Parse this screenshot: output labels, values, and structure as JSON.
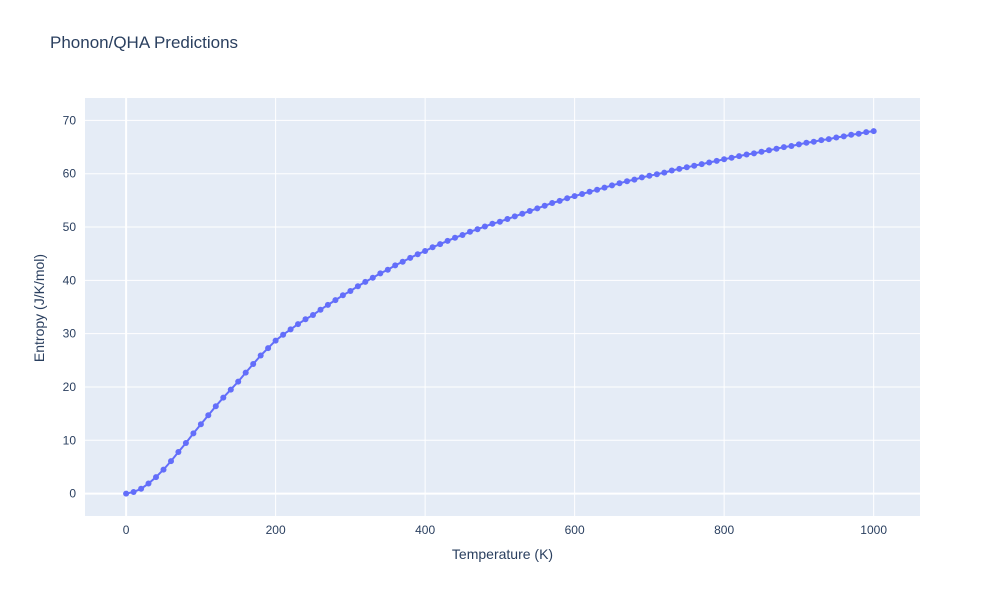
{
  "chart_data": {
    "type": "line",
    "mode": "lines+markers",
    "title": "Phonon/QHA Predictions",
    "xlabel": "Temperature (K)",
    "ylabel": "Entropy (J/K/mol)",
    "line_color": "#636efa",
    "marker_color": "#636efa",
    "plot_bg": "#e5ecf6",
    "grid_color": "#ffffff",
    "title_color": "#2a3f5f",
    "tick_color": "#2a3f5f",
    "legend": "none",
    "grid": "on",
    "x_ticks": [
      0,
      200,
      400,
      600,
      800,
      1000
    ],
    "y_ticks": [
      0,
      10,
      20,
      30,
      40,
      50,
      60,
      70
    ],
    "x_range": [
      -55,
      1062
    ],
    "y_range": [
      -4.2,
      74.2
    ],
    "x": [
      0,
      10,
      20,
      30,
      40,
      50,
      60,
      70,
      80,
      90,
      100,
      110,
      120,
      130,
      140,
      150,
      160,
      170,
      180,
      190,
      200,
      210,
      220,
      230,
      240,
      250,
      260,
      270,
      280,
      290,
      300,
      310,
      320,
      330,
      340,
      350,
      360,
      370,
      380,
      390,
      400,
      410,
      420,
      430,
      440,
      450,
      460,
      470,
      480,
      490,
      500,
      510,
      520,
      530,
      540,
      550,
      560,
      570,
      580,
      590,
      600,
      610,
      620,
      630,
      640,
      650,
      660,
      670,
      680,
      690,
      700,
      710,
      720,
      730,
      740,
      750,
      760,
      770,
      780,
      790,
      800,
      810,
      820,
      830,
      840,
      850,
      860,
      870,
      880,
      890,
      900,
      910,
      920,
      930,
      940,
      950,
      960,
      970,
      980,
      990,
      1000
    ],
    "y": [
      0.0,
      0.3,
      0.9,
      1.9,
      3.1,
      4.5,
      6.1,
      7.8,
      9.5,
      11.3,
      13.0,
      14.7,
      16.4,
      18.0,
      19.5,
      21.0,
      22.7,
      24.3,
      25.9,
      27.3,
      28.7,
      29.8,
      30.8,
      31.8,
      32.7,
      33.5,
      34.5,
      35.4,
      36.3,
      37.2,
      38.0,
      38.9,
      39.7,
      40.5,
      41.3,
      42.0,
      42.8,
      43.5,
      44.2,
      44.9,
      45.5,
      46.2,
      46.8,
      47.4,
      48.0,
      48.5,
      49.1,
      49.6,
      50.1,
      50.6,
      51.0,
      51.5,
      52.0,
      52.5,
      53.0,
      53.5,
      54.0,
      54.5,
      54.9,
      55.4,
      55.8,
      56.2,
      56.6,
      57.0,
      57.4,
      57.8,
      58.2,
      58.6,
      58.9,
      59.3,
      59.6,
      59.9,
      60.2,
      60.6,
      60.9,
      61.2,
      61.5,
      61.8,
      62.1,
      62.4,
      62.7,
      63.0,
      63.3,
      63.6,
      63.8,
      64.1,
      64.4,
      64.7,
      65.0,
      65.2,
      65.5,
      65.8,
      66.0,
      66.3,
      66.5,
      66.8,
      67.0,
      67.3,
      67.5,
      67.8,
      68.0
    ]
  }
}
